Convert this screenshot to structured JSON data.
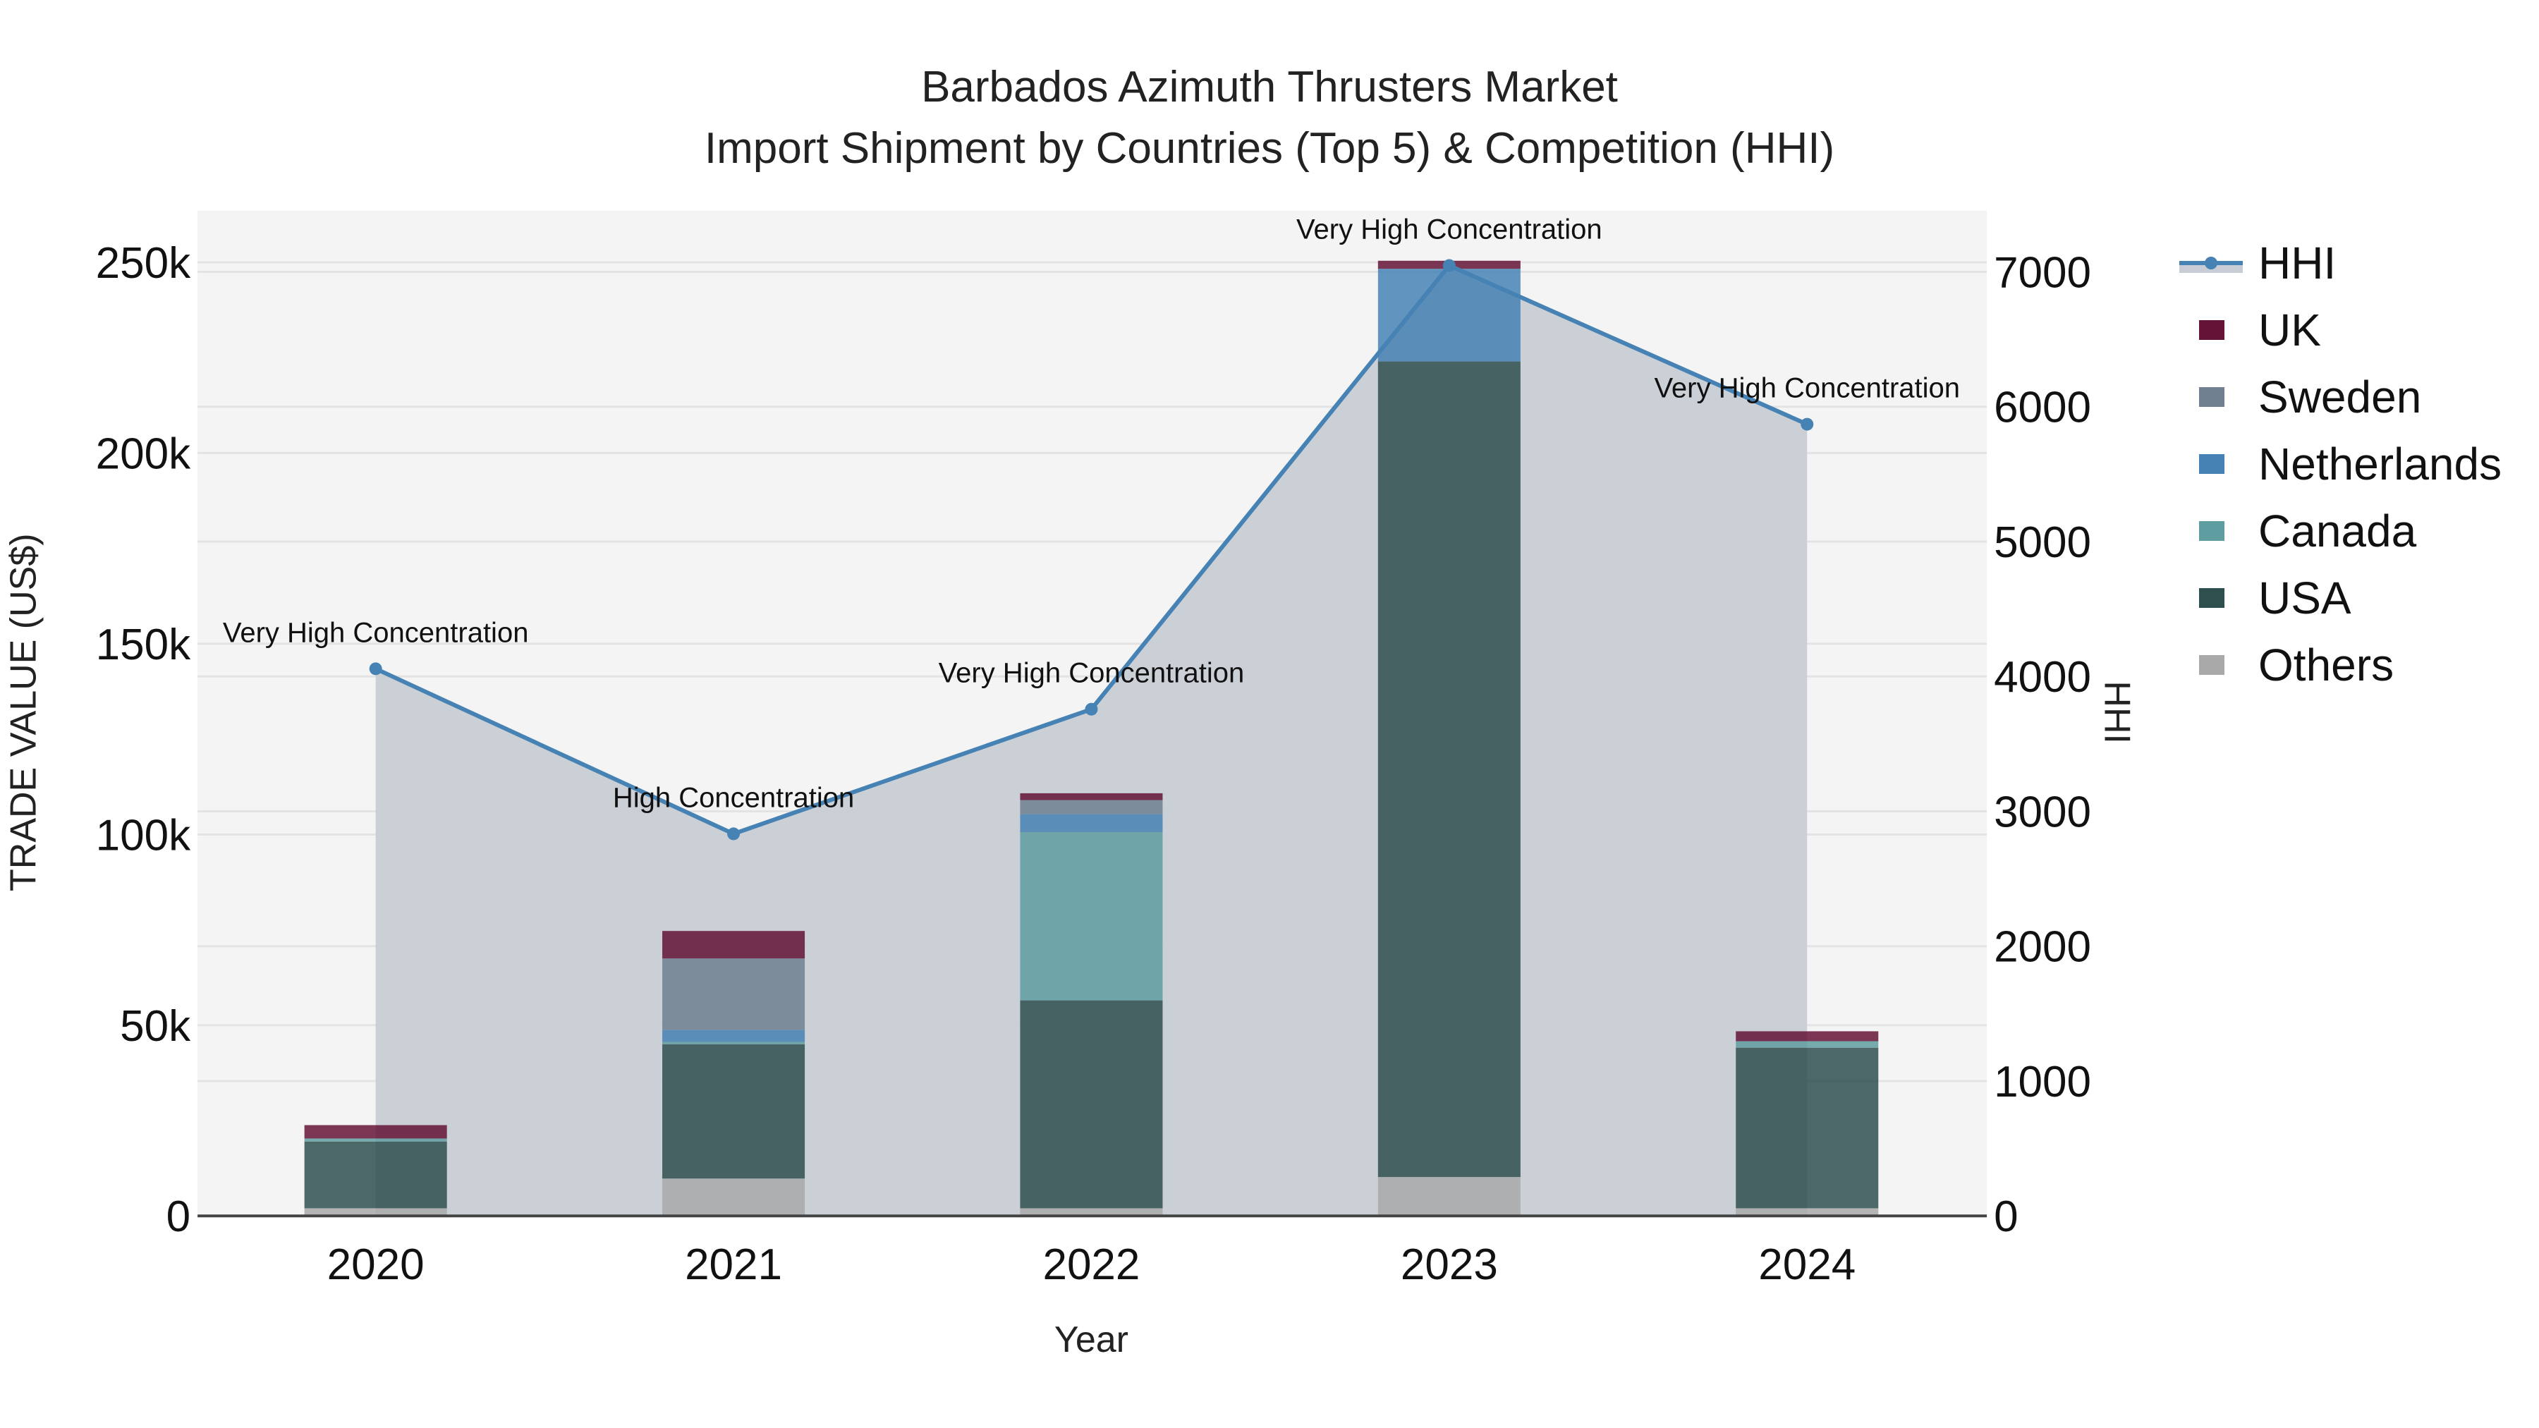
{
  "title": {
    "line1": "Barbados Azimuth Thrusters Market",
    "line2": "Import Shipment by Countries (Top 5) & Competition (HHI)"
  },
  "axes": {
    "xlabel": "Year",
    "ylabel_left": "TRADE VALUE (US$)",
    "ylabel_right": "HHI",
    "left_ticks": [
      "0",
      "50k",
      "100k",
      "150k",
      "200k",
      "250k"
    ],
    "right_ticks": [
      "0",
      "1000",
      "2000",
      "3000",
      "4000",
      "5000",
      "6000",
      "7000"
    ]
  },
  "legend": [
    {
      "name": "HHI",
      "type": "line",
      "color": "#4682B4"
    },
    {
      "name": "UK",
      "type": "bar",
      "color": "#641436"
    },
    {
      "name": "Sweden",
      "type": "bar",
      "color": "#708090"
    },
    {
      "name": "Netherlands",
      "type": "bar",
      "color": "#4682B4"
    },
    {
      "name": "Canada",
      "type": "bar",
      "color": "#5F9EA0"
    },
    {
      "name": "USA",
      "type": "bar",
      "color": "#2F4F4F"
    },
    {
      "name": "Others",
      "type": "bar",
      "color": "#A9A9A9"
    }
  ],
  "colors": {
    "plot_bg": "#F4F4F4",
    "hhi_fill": "#C8CDD5",
    "grid": "#E3E3E3",
    "axis": "#444444"
  },
  "chart_data": {
    "type": "bar",
    "title": "Barbados Azimuth Thrusters Market — Import Shipment by Countries (Top 5) & Competition (HHI)",
    "xlabel": "Year",
    "ylabel": "TRADE VALUE (US$)",
    "y2label": "HHI",
    "categories": [
      "2020",
      "2021",
      "2022",
      "2023",
      "2024"
    ],
    "stacked": true,
    "ylim": [
      0,
      262000
    ],
    "y2lim": [
      0,
      7450
    ],
    "series": [
      {
        "name": "Others",
        "color": "#A9A9A9",
        "values": [
          2000,
          9800,
          2000,
          10200,
          2000
        ]
      },
      {
        "name": "USA",
        "color": "#2F4F4F",
        "values": [
          17500,
          35200,
          54500,
          213800,
          42100
        ]
      },
      {
        "name": "Canada",
        "color": "#5F9EA0",
        "values": [
          800,
          600,
          44100,
          0,
          1700
        ]
      },
      {
        "name": "Netherlands",
        "color": "#4682B4",
        "values": [
          0,
          3200,
          4700,
          24300,
          0
        ]
      },
      {
        "name": "Sweden",
        "color": "#708090",
        "values": [
          0,
          18700,
          3700,
          0,
          0
        ]
      },
      {
        "name": "UK",
        "color": "#641436",
        "values": [
          3500,
          7200,
          1800,
          2100,
          2600
        ]
      }
    ],
    "hhi": {
      "name": "HHI",
      "type": "line+area",
      "axis": "right",
      "color": "#4682B4",
      "values": [
        4057,
        2833,
        3757,
        7047,
        5870
      ],
      "annotations": [
        "Very High Concentration",
        "High Concentration",
        "Very High Concentration",
        "Very High Concentration",
        "Very High Concentration"
      ]
    },
    "grid": true,
    "legend_position": "right"
  }
}
